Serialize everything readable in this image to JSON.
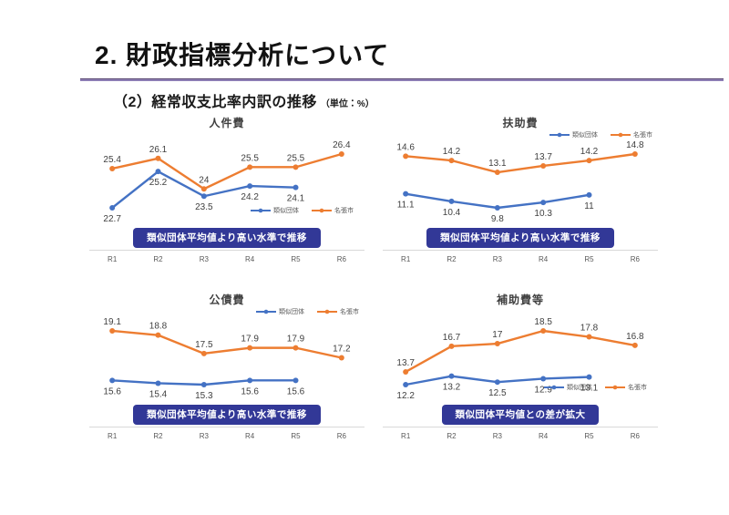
{
  "header": {
    "title": "2. 財政指標分析について",
    "subtitle": "（2）経常収支比率内訳の推移",
    "unit": "（単位：%）"
  },
  "colors": {
    "blue": "#4472C4",
    "orange": "#ED7D31",
    "banner_bg": "#323897",
    "divider_purple": "#8373AE",
    "data_label": "#3F3F3F",
    "tick_label": "#595959",
    "axis_line": "#D9D9D9"
  },
  "chart_data": [
    {
      "type": "line",
      "title": "人件費",
      "categories": [
        "R1",
        "R2",
        "R3",
        "R4",
        "R5",
        "R6"
      ],
      "series": [
        {
          "name": "類似団体",
          "color_key": "blue",
          "label_side": "below",
          "values": [
            22.7,
            25.2,
            23.5,
            24.2,
            24.1
          ]
        },
        {
          "name": "名張市",
          "color_key": "orange",
          "label_side": "above",
          "values": [
            25.4,
            26.1,
            24,
            25.5,
            25.5,
            26.4
          ]
        }
      ],
      "banner": "類似団体平均値より高い水準で推移",
      "legend_position": "bottom-right",
      "grid": false,
      "ylim": [
        22.7,
        26.4
      ]
    },
    {
      "type": "line",
      "title": "扶助費",
      "categories": [
        "R1",
        "R2",
        "R3",
        "R4",
        "R5",
        "R6"
      ],
      "series": [
        {
          "name": "類似団体",
          "color_key": "blue",
          "label_side": "below",
          "values": [
            11.1,
            10.4,
            9.8,
            10.3,
            11
          ]
        },
        {
          "name": "名張市",
          "color_key": "orange",
          "label_side": "above",
          "values": [
            14.6,
            14.2,
            13.1,
            13.7,
            14.2,
            14.8
          ]
        }
      ],
      "banner": "類似団体平均値より高い水準で推移",
      "legend_position": "top-right",
      "grid": false,
      "ylim": [
        9.8,
        14.8
      ]
    },
    {
      "type": "line",
      "title": "公債費",
      "categories": [
        "R1",
        "R2",
        "R3",
        "R4",
        "R5",
        "R6"
      ],
      "series": [
        {
          "name": "類似団体",
          "color_key": "blue",
          "label_side": "below",
          "values": [
            15.6,
            15.4,
            15.3,
            15.6,
            15.6
          ]
        },
        {
          "name": "名張市",
          "color_key": "orange",
          "label_side": "above",
          "values": [
            19.1,
            18.8,
            17.5,
            17.9,
            17.9,
            17.2
          ]
        }
      ],
      "banner": "類似団体平均値より高い水準で推移",
      "legend_position": "top-right",
      "grid": false,
      "ylim": [
        15.3,
        19.1
      ]
    },
    {
      "type": "line",
      "title": "補助費等",
      "categories": [
        "R1",
        "R2",
        "R3",
        "R4",
        "R5",
        "R6"
      ],
      "series": [
        {
          "name": "類似団体",
          "color_key": "blue",
          "label_side": "below",
          "values": [
            12.2,
            13.2,
            12.5,
            12.9,
            13.1
          ]
        },
        {
          "name": "名張市",
          "color_key": "orange",
          "label_side": "above",
          "values": [
            13.7,
            16.7,
            17,
            18.5,
            17.8,
            16.8
          ]
        }
      ],
      "banner": "類似団体平均値との差が拡大",
      "legend_position": "bottom-right",
      "grid": false,
      "ylim": [
        12.2,
        18.5
      ]
    }
  ]
}
